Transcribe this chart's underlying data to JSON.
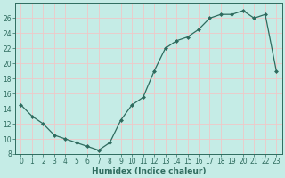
{
  "x": [
    0,
    1,
    2,
    3,
    4,
    5,
    6,
    7,
    8,
    9,
    10,
    11,
    12,
    13,
    14,
    15,
    16,
    17,
    18,
    19,
    20,
    21,
    22,
    23
  ],
  "y": [
    14.5,
    13,
    12,
    10.5,
    10,
    9.5,
    9,
    8.5,
    9.5,
    12.5,
    14.5,
    15.5,
    19,
    22,
    23,
    23.5,
    24.5,
    26,
    26.5,
    26.5,
    27,
    26,
    26.5,
    19
  ],
  "line_color": "#2e6b5e",
  "marker_color": "#2e6b5e",
  "bg_color": "#c5ece6",
  "grid_major_color": "#f0c8c8",
  "grid_minor_color": "#dde8e6",
  "xlabel": "Humidex (Indice chaleur)",
  "ylim": [
    8,
    28
  ],
  "xlim": [
    -0.5,
    23.5
  ],
  "yticks": [
    8,
    10,
    12,
    14,
    16,
    18,
    20,
    22,
    24,
    26
  ],
  "xticks": [
    0,
    1,
    2,
    3,
    4,
    5,
    6,
    7,
    8,
    9,
    10,
    11,
    12,
    13,
    14,
    15,
    16,
    17,
    18,
    19,
    20,
    21,
    22,
    23
  ],
  "font_color": "#2e6b5e",
  "tick_fontsize": 5.5,
  "xlabel_fontsize": 6.5
}
